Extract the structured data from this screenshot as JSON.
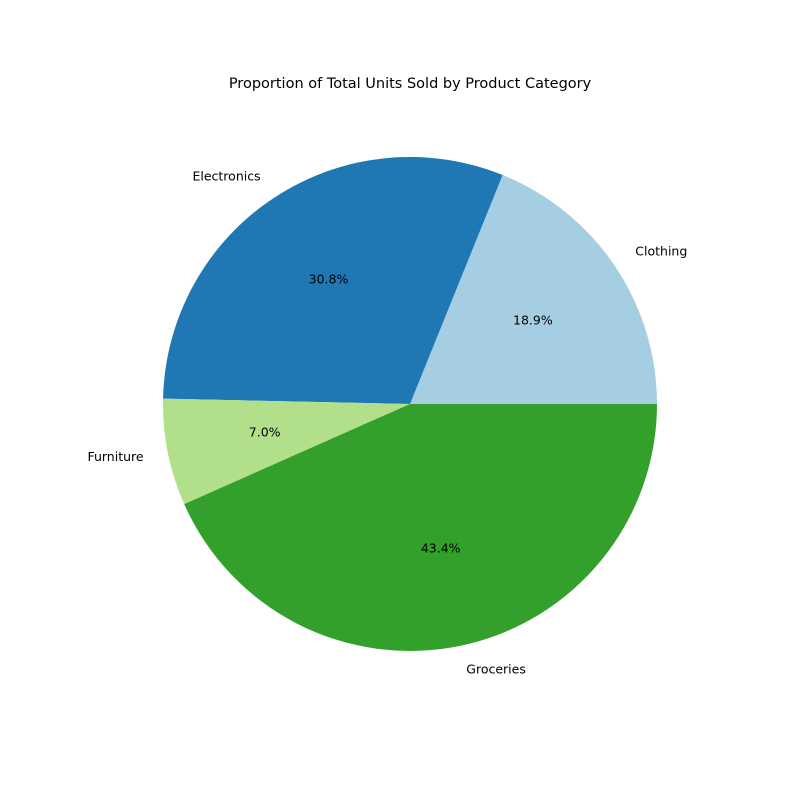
{
  "chart_data": {
    "type": "pie",
    "title": "Proportion of Total Units Sold by Product Category",
    "categories": [
      "Clothing",
      "Electronics",
      "Furniture",
      "Groceries"
    ],
    "values": [
      18.9,
      30.8,
      7.0,
      43.4
    ],
    "value_labels": [
      "18.9%",
      "30.8%",
      "7.0%",
      "43.4%"
    ],
    "colors": [
      "#a6cee3",
      "#1f78b4",
      "#b2df8a",
      "#33a02c"
    ],
    "start_angle_deg": 0,
    "direction": "counterclockwise",
    "legend": "none"
  }
}
